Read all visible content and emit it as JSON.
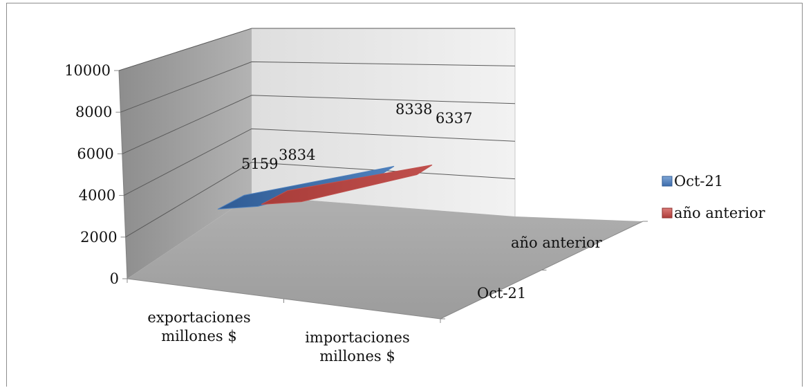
{
  "chart_data": {
    "type": "line",
    "title": "",
    "xlabel": "",
    "ylabel": "",
    "ylim": [
      0,
      10000
    ],
    "y_ticks": [
      "0",
      "2000",
      "4000",
      "6000",
      "8000",
      "10000"
    ],
    "categories": [
      [
        "exportaciones",
        "millones $"
      ],
      [
        "importaciones",
        "millones $"
      ]
    ],
    "depth_categories": [
      "Oct-21",
      "año anterior"
    ],
    "series": [
      {
        "name": "Oct-21",
        "values": [
          5159,
          8338
        ],
        "value_labels": [
          "5159",
          "8338"
        ],
        "color": "#4f81bd"
      },
      {
        "name": "año anterior",
        "values": [
          3834,
          6337
        ],
        "value_labels": [
          "3834",
          "6337"
        ],
        "color": "#c0504d"
      }
    ],
    "grid": true,
    "legend_position": "right",
    "view": "3d"
  }
}
